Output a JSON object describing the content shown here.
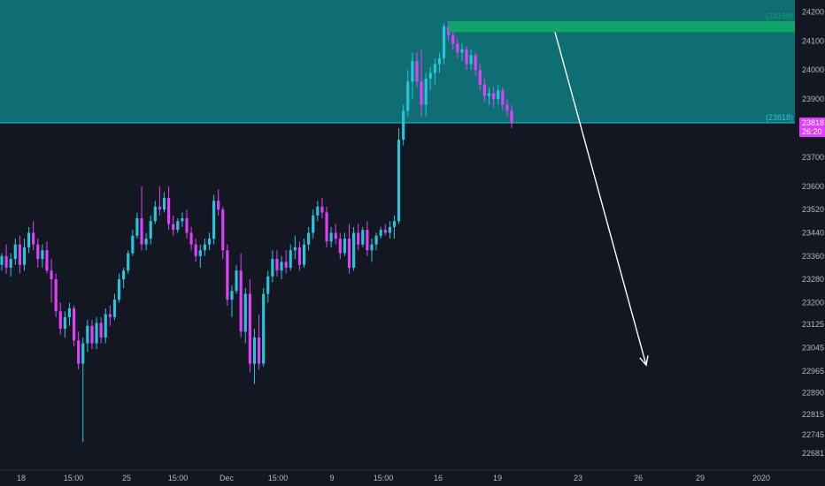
{
  "chart_data": {
    "type": "candlestick",
    "title": "",
    "colors": {
      "background": "#131722",
      "bull": "#26c6da",
      "bear": "#e040fb",
      "zone_fill": "#0f6e73",
      "zone_line": "#26c6da",
      "supply_box": "#10a36a",
      "arrow": "#ffffff",
      "axis_text": "#b2b5be",
      "price_tag": "#e040fb"
    },
    "y_axis": {
      "side": "right",
      "range": [
        22640,
        24280
      ],
      "ticks": [
        "24200",
        "24100",
        "24000",
        "23900",
        "23700",
        "23600",
        "23520",
        "23440",
        "23360",
        "23280",
        "23200",
        "23125",
        "23045",
        "22965",
        "22890",
        "22815",
        "22745",
        "22681"
      ]
    },
    "x_axis": {
      "ticks": [
        "18",
        "15:00",
        "25",
        "15:00",
        "Dec",
        "15:00",
        "9",
        "15:00",
        "16",
        "19",
        "23",
        "26",
        "29",
        "2020"
      ]
    },
    "levels": [
      {
        "label": "(24168)",
        "value": 24168,
        "color": "#10a36a"
      },
      {
        "label": "(23818)",
        "value": 23818,
        "color": "#26c6da"
      }
    ],
    "current_price": {
      "value": "23818",
      "countdown": "26:20"
    },
    "zones": [
      {
        "name": "blue-zone",
        "from": 23818,
        "to": 24280
      },
      {
        "name": "supply-box",
        "from": 24130,
        "to": 24168
      }
    ],
    "arrow": {
      "from_value": 24130,
      "to_value": 22985,
      "direction": "down"
    },
    "candles": [
      [
        23330,
        23370,
        23310,
        23360
      ],
      [
        23360,
        23400,
        23300,
        23320
      ],
      [
        23320,
        23370,
        23290,
        23350
      ],
      [
        23350,
        23420,
        23330,
        23400
      ],
      [
        23400,
        23430,
        23300,
        23330
      ],
      [
        23330,
        23420,
        23310,
        23390
      ],
      [
        23390,
        23460,
        23370,
        23440
      ],
      [
        23440,
        23480,
        23380,
        23400
      ],
      [
        23400,
        23420,
        23320,
        23350
      ],
      [
        23350,
        23400,
        23320,
        23380
      ],
      [
        23380,
        23410,
        23300,
        23310
      ],
      [
        23310,
        23350,
        23200,
        23280
      ],
      [
        23280,
        23300,
        23150,
        23170
      ],
      [
        23170,
        23200,
        23090,
        23110
      ],
      [
        23110,
        23170,
        23080,
        23150
      ],
      [
        23150,
        23200,
        23120,
        23180
      ],
      [
        23180,
        23190,
        23050,
        23070
      ],
      [
        23070,
        23100,
        22970,
        22990
      ],
      [
        22990,
        23080,
        22720,
        23060
      ],
      [
        23060,
        23140,
        23030,
        23120
      ],
      [
        23120,
        23140,
        23040,
        23060
      ],
      [
        23060,
        23150,
        23040,
        23130
      ],
      [
        23130,
        23150,
        23060,
        23080
      ],
      [
        23080,
        23180,
        23060,
        23160
      ],
      [
        23160,
        23190,
        23120,
        23150
      ],
      [
        23150,
        23230,
        23140,
        23210
      ],
      [
        23210,
        23300,
        23200,
        23280
      ],
      [
        23280,
        23320,
        23250,
        23310
      ],
      [
        23310,
        23380,
        23300,
        23370
      ],
      [
        23370,
        23450,
        23360,
        23430
      ],
      [
        23430,
        23510,
        23420,
        23490
      ],
      [
        23490,
        23600,
        23380,
        23400
      ],
      [
        23400,
        23440,
        23380,
        23420
      ],
      [
        23420,
        23500,
        23400,
        23480
      ],
      [
        23480,
        23550,
        23470,
        23530
      ],
      [
        23530,
        23600,
        23500,
        23520
      ],
      [
        23520,
        23580,
        23510,
        23560
      ],
      [
        23560,
        23600,
        23450,
        23470
      ],
      [
        23470,
        23500,
        23430,
        23450
      ],
      [
        23450,
        23490,
        23440,
        23480
      ],
      [
        23480,
        23510,
        23460,
        23490
      ],
      [
        23490,
        23520,
        23420,
        23440
      ],
      [
        23440,
        23460,
        23380,
        23400
      ],
      [
        23400,
        23420,
        23340,
        23360
      ],
      [
        23360,
        23400,
        23320,
        23380
      ],
      [
        23380,
        23420,
        23360,
        23400
      ],
      [
        23400,
        23440,
        23380,
        23420
      ],
      [
        23420,
        23570,
        23400,
        23550
      ],
      [
        23550,
        23590,
        23500,
        23520
      ],
      [
        23520,
        23530,
        23350,
        23380
      ],
      [
        23380,
        23400,
        23190,
        23210
      ],
      [
        23210,
        23260,
        23150,
        23240
      ],
      [
        23240,
        23330,
        23230,
        23310
      ],
      [
        23310,
        23370,
        23080,
        23100
      ],
      [
        23100,
        23250,
        23060,
        23230
      ],
      [
        23230,
        23280,
        22960,
        22990
      ],
      [
        22990,
        23110,
        22920,
        23080
      ],
      [
        23080,
        23160,
        22970,
        22990
      ],
      [
        22990,
        23250,
        22980,
        23230
      ],
      [
        23230,
        23310,
        23200,
        23290
      ],
      [
        23290,
        23380,
        23270,
        23350
      ],
      [
        23350,
        23380,
        23290,
        23310
      ],
      [
        23310,
        23360,
        23280,
        23340
      ],
      [
        23340,
        23380,
        23300,
        23320
      ],
      [
        23320,
        23400,
        23310,
        23380
      ],
      [
        23380,
        23430,
        23350,
        23390
      ],
      [
        23390,
        23410,
        23310,
        23330
      ],
      [
        23330,
        23420,
        23320,
        23400
      ],
      [
        23400,
        23460,
        23380,
        23440
      ],
      [
        23440,
        23520,
        23420,
        23500
      ],
      [
        23500,
        23550,
        23480,
        23530
      ],
      [
        23530,
        23560,
        23490,
        23510
      ],
      [
        23510,
        23530,
        23390,
        23410
      ],
      [
        23410,
        23460,
        23390,
        23440
      ],
      [
        23440,
        23470,
        23400,
        23420
      ],
      [
        23420,
        23440,
        23350,
        23370
      ],
      [
        23370,
        23440,
        23360,
        23420
      ],
      [
        23420,
        23470,
        23300,
        23320
      ],
      [
        23320,
        23460,
        23310,
        23440
      ],
      [
        23440,
        23470,
        23380,
        23400
      ],
      [
        23400,
        23460,
        23390,
        23450
      ],
      [
        23450,
        23480,
        23360,
        23380
      ],
      [
        23380,
        23420,
        23340,
        23400
      ],
      [
        23400,
        23440,
        23380,
        23430
      ],
      [
        23430,
        23460,
        23420,
        23450
      ],
      [
        23450,
        23470,
        23430,
        23440
      ],
      [
        23440,
        23480,
        23420,
        23460
      ],
      [
        23460,
        23500,
        23420,
        23480
      ],
      [
        23480,
        23800,
        23470,
        23760
      ],
      [
        23760,
        23880,
        23740,
        23860
      ],
      [
        23860,
        24000,
        23840,
        23960
      ],
      [
        23960,
        24060,
        23900,
        24030
      ],
      [
        24030,
        24060,
        23940,
        23960
      ],
      [
        23960,
        24070,
        23840,
        23880
      ],
      [
        23880,
        23990,
        23840,
        23970
      ],
      [
        23970,
        24010,
        23930,
        23990
      ],
      [
        23990,
        24040,
        23950,
        24020
      ],
      [
        24020,
        24060,
        23990,
        24040
      ],
      [
        24040,
        24160,
        24020,
        24150
      ],
      [
        24150,
        24170,
        24100,
        24120
      ],
      [
        24120,
        24140,
        24070,
        24090
      ],
      [
        24090,
        24110,
        24040,
        24060
      ],
      [
        24060,
        24090,
        24030,
        24070
      ],
      [
        24070,
        24080,
        24000,
        24020
      ],
      [
        24020,
        24070,
        24000,
        24050
      ],
      [
        24050,
        24060,
        23980,
        24000
      ],
      [
        24000,
        24020,
        23930,
        23950
      ],
      [
        23950,
        23970,
        23890,
        23910
      ],
      [
        23910,
        23940,
        23880,
        23920
      ],
      [
        23920,
        23940,
        23870,
        23900
      ],
      [
        23900,
        23950,
        23880,
        23930
      ],
      [
        23930,
        23940,
        23860,
        23880
      ],
      [
        23880,
        23900,
        23840,
        23860
      ],
      [
        23860,
        23880,
        23800,
        23818
      ]
    ]
  }
}
